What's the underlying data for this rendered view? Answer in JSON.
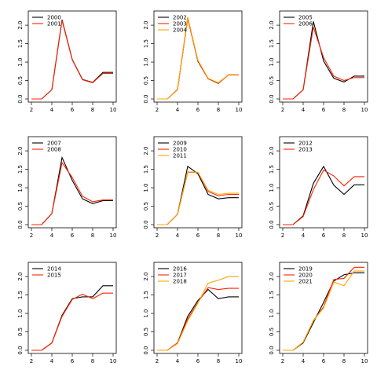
{
  "chart_data": [
    {
      "type": "line",
      "x": [
        2,
        3,
        4,
        5,
        6,
        7,
        8,
        9,
        10
      ],
      "xticks": [
        2,
        4,
        6,
        8,
        10
      ],
      "yticks": [
        "0.0",
        "0.5",
        "1.0",
        "1.5",
        "2.0"
      ],
      "ylim": [
        0,
        2.3
      ],
      "xlim": [
        2,
        10
      ],
      "legend_position": "top-left",
      "series": [
        {
          "name": "2000",
          "color": "#000000",
          "values": [
            0,
            0,
            0.25,
            2.15,
            1.07,
            0.53,
            0.45,
            0.72,
            0.72
          ]
        },
        {
          "name": "2001",
          "color": "#ff2200",
          "values": [
            0,
            0,
            0.25,
            2.13,
            1.06,
            0.52,
            0.44,
            0.69,
            0.69
          ]
        }
      ]
    },
    {
      "type": "line",
      "x": [
        2,
        3,
        4,
        5,
        6,
        7,
        8,
        9,
        10
      ],
      "xticks": [
        2,
        4,
        6,
        8,
        10
      ],
      "yticks": [
        "0.0",
        "0.5",
        "1.0",
        "1.5",
        "2.0"
      ],
      "ylim": [
        0,
        2.3
      ],
      "xlim": [
        2,
        10
      ],
      "legend_position": "top-left",
      "series": [
        {
          "name": "2002",
          "color": "#000000",
          "values": [
            0,
            0,
            0.25,
            2.2,
            1.02,
            0.55,
            0.42,
            0.66,
            0.66
          ]
        },
        {
          "name": "2003",
          "color": "#ff2200",
          "values": [
            0,
            0,
            0.26,
            2.18,
            1.04,
            0.55,
            0.43,
            0.65,
            0.65
          ]
        },
        {
          "name": "2004",
          "color": "#ffa500",
          "values": [
            0,
            0,
            0.25,
            2.22,
            1.05,
            0.56,
            0.44,
            0.66,
            0.66
          ]
        }
      ]
    },
    {
      "type": "line",
      "x": [
        2,
        3,
        4,
        5,
        6,
        7,
        8,
        9,
        10
      ],
      "xticks": [
        2,
        4,
        6,
        8,
        10
      ],
      "yticks": [
        "0.0",
        "0.5",
        "1.0",
        "1.5",
        "2.0"
      ],
      "ylim": [
        0,
        2.3
      ],
      "xlim": [
        2,
        10
      ],
      "legend_position": "top-left",
      "series": [
        {
          "name": "2005",
          "color": "#000000",
          "values": [
            0,
            0,
            0.25,
            2.1,
            1.03,
            0.56,
            0.46,
            0.62,
            0.62
          ]
        },
        {
          "name": "2006",
          "color": "#ff2200",
          "values": [
            0,
            0,
            0.25,
            1.95,
            1.12,
            0.62,
            0.5,
            0.58,
            0.58
          ]
        }
      ]
    },
    {
      "type": "line",
      "x": [
        2,
        3,
        4,
        5,
        6,
        7,
        8,
        9,
        10
      ],
      "xticks": [
        2,
        4,
        6,
        8,
        10
      ],
      "yticks": [
        "0.0",
        "0.5",
        "1.0",
        "1.5",
        "2.0"
      ],
      "ylim": [
        0,
        2.3
      ],
      "xlim": [
        2,
        10
      ],
      "legend_position": "top-left",
      "series": [
        {
          "name": "2007",
          "color": "#000000",
          "values": [
            0,
            0,
            0.3,
            1.82,
            1.2,
            0.7,
            0.57,
            0.65,
            0.65
          ]
        },
        {
          "name": "2008",
          "color": "#ff2200",
          "values": [
            0,
            0,
            0.3,
            1.68,
            1.28,
            0.77,
            0.62,
            0.67,
            0.67
          ]
        }
      ]
    },
    {
      "type": "line",
      "x": [
        2,
        3,
        4,
        5,
        6,
        7,
        8,
        9,
        10
      ],
      "xticks": [
        2,
        4,
        6,
        8,
        10
      ],
      "yticks": [
        "0.0",
        "0.5",
        "1.0",
        "1.5",
        "2.0"
      ],
      "ylim": [
        0,
        2.3
      ],
      "xlim": [
        2,
        10
      ],
      "legend_position": "top-left",
      "series": [
        {
          "name": "2009",
          "color": "#000000",
          "values": [
            0,
            0,
            0.28,
            1.58,
            1.38,
            0.82,
            0.7,
            0.73,
            0.73
          ]
        },
        {
          "name": "2010",
          "color": "#ff2200",
          "values": [
            0,
            0,
            0.28,
            1.42,
            1.42,
            0.9,
            0.78,
            0.82,
            0.82
          ]
        },
        {
          "name": "2011",
          "color": "#ffa500",
          "values": [
            0,
            0,
            0.28,
            1.43,
            1.42,
            0.93,
            0.82,
            0.85,
            0.85
          ]
        }
      ]
    },
    {
      "type": "line",
      "x": [
        2,
        3,
        4,
        5,
        6,
        7,
        8,
        9,
        10
      ],
      "xticks": [
        2,
        4,
        6,
        8,
        10
      ],
      "yticks": [
        "0.0",
        "0.5",
        "1.0",
        "1.5",
        "2.0"
      ],
      "ylim": [
        0,
        2.3
      ],
      "xlim": [
        2,
        10
      ],
      "legend_position": "top-left",
      "series": [
        {
          "name": "2012",
          "color": "#000000",
          "values": [
            0,
            0,
            0.24,
            1.12,
            1.58,
            1.07,
            0.82,
            1.08,
            1.08
          ]
        },
        {
          "name": "2013",
          "color": "#ff2200",
          "values": [
            0,
            0,
            0.22,
            0.95,
            1.48,
            1.32,
            1.05,
            1.3,
            1.3
          ]
        }
      ]
    },
    {
      "type": "line",
      "x": [
        2,
        3,
        4,
        5,
        6,
        7,
        8,
        9,
        10
      ],
      "xticks": [
        2,
        4,
        6,
        8,
        10
      ],
      "yticks": [
        "0.0",
        "0.5",
        "1.0",
        "1.5",
        "2.0"
      ],
      "ylim": [
        0,
        2.3
      ],
      "xlim": [
        2,
        10
      ],
      "legend_position": "top-left",
      "series": [
        {
          "name": "2014",
          "color": "#000000",
          "values": [
            0,
            0,
            0.2,
            0.95,
            1.4,
            1.45,
            1.45,
            1.75,
            1.75
          ]
        },
        {
          "name": "2015",
          "color": "#ff2200",
          "values": [
            0,
            0,
            0.2,
            0.92,
            1.38,
            1.52,
            1.4,
            1.55,
            1.55
          ]
        }
      ]
    },
    {
      "type": "line",
      "x": [
        2,
        3,
        4,
        5,
        6,
        7,
        8,
        9,
        10
      ],
      "xticks": [
        2,
        4,
        6,
        8,
        10
      ],
      "yticks": [
        "0.0",
        "0.5",
        "1.0",
        "1.5",
        "2.0"
      ],
      "ylim": [
        0,
        2.3
      ],
      "xlim": [
        2,
        10
      ],
      "legend_position": "top-left",
      "series": [
        {
          "name": "2016",
          "color": "#000000",
          "values": [
            0,
            0,
            0.2,
            0.92,
            1.35,
            1.65,
            1.4,
            1.45,
            1.45
          ]
        },
        {
          "name": "2017",
          "color": "#ff2200",
          "values": [
            0,
            0,
            0.2,
            0.85,
            1.3,
            1.7,
            1.65,
            1.68,
            1.68
          ]
        },
        {
          "name": "2018",
          "color": "#ffa500",
          "values": [
            0,
            0,
            0.18,
            0.8,
            1.28,
            1.82,
            1.9,
            2.0,
            2.0
          ]
        }
      ]
    },
    {
      "type": "line",
      "x": [
        2,
        3,
        4,
        5,
        6,
        7,
        8,
        9,
        10
      ],
      "xticks": [
        2,
        4,
        6,
        8,
        10
      ],
      "yticks": [
        "0.0",
        "0.5",
        "1.0",
        "1.5",
        "2.0"
      ],
      "ylim": [
        0,
        2.3
      ],
      "xlim": [
        2,
        10
      ],
      "legend_position": "top-left",
      "series": [
        {
          "name": "2019",
          "color": "#000000",
          "values": [
            0,
            0,
            0.2,
            0.75,
            1.3,
            1.88,
            2.05,
            2.1,
            2.1
          ]
        },
        {
          "name": "2020",
          "color": "#ff2200",
          "values": [
            0,
            0,
            0.22,
            0.8,
            1.18,
            1.92,
            1.95,
            2.25,
            2.25
          ]
        },
        {
          "name": "2021",
          "color": "#ffa500",
          "values": [
            0,
            0,
            0.22,
            0.8,
            1.15,
            1.85,
            1.75,
            2.15,
            2.15
          ]
        }
      ]
    }
  ]
}
